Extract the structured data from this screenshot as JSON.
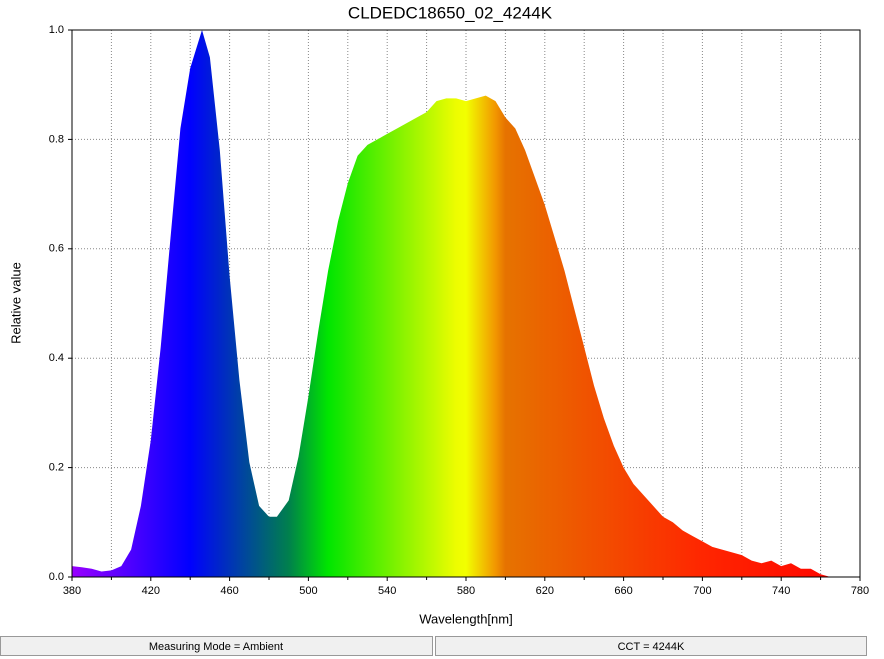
{
  "chart_data": {
    "type": "area",
    "title": "CLDEDC18650_02_4244K",
    "xlabel": "Wavelength[nm]",
    "ylabel": "Relative value",
    "x": [
      380,
      385,
      390,
      395,
      400,
      405,
      410,
      415,
      420,
      425,
      430,
      435,
      440,
      446,
      450,
      455,
      460,
      465,
      470,
      475,
      480,
      484,
      490,
      495,
      500,
      505,
      510,
      515,
      520,
      525,
      530,
      535,
      540,
      545,
      550,
      555,
      560,
      565,
      570,
      575,
      580,
      585,
      590,
      595,
      600,
      605,
      610,
      615,
      620,
      625,
      630,
      635,
      640,
      645,
      650,
      655,
      660,
      665,
      670,
      675,
      680,
      685,
      690,
      695,
      700,
      705,
      710,
      715,
      720,
      725,
      730,
      735,
      740,
      745,
      750,
      755,
      760,
      765,
      770,
      775,
      780
    ],
    "values": [
      0.02,
      0.018,
      0.015,
      0.01,
      0.012,
      0.02,
      0.05,
      0.13,
      0.25,
      0.42,
      0.62,
      0.82,
      0.93,
      1.0,
      0.95,
      0.78,
      0.55,
      0.36,
      0.21,
      0.13,
      0.11,
      0.11,
      0.14,
      0.22,
      0.33,
      0.45,
      0.56,
      0.65,
      0.72,
      0.77,
      0.79,
      0.8,
      0.81,
      0.82,
      0.83,
      0.84,
      0.85,
      0.87,
      0.875,
      0.875,
      0.87,
      0.875,
      0.88,
      0.87,
      0.84,
      0.82,
      0.78,
      0.73,
      0.68,
      0.62,
      0.56,
      0.49,
      0.42,
      0.35,
      0.29,
      0.24,
      0.2,
      0.17,
      0.15,
      0.13,
      0.11,
      0.1,
      0.085,
      0.075,
      0.065,
      0.055,
      0.05,
      0.045,
      0.04,
      0.03,
      0.025,
      0.03,
      0.02,
      0.025,
      0.015,
      0.015,
      0.005,
      0,
      0,
      0,
      0
    ],
    "xlim": [
      380,
      780
    ],
    "ylim": [
      0,
      1
    ],
    "xticks": [
      380,
      420,
      460,
      500,
      540,
      580,
      620,
      660,
      700,
      740,
      780
    ],
    "xminorticks": [
      400,
      440,
      480,
      520,
      560,
      600,
      640,
      680,
      720,
      760
    ],
    "yticks": [
      {
        "value": 0,
        "label": "0.0"
      },
      0.2,
      0.4,
      0.6,
      0.8,
      {
        "value": 1,
        "label": "1.0"
      }
    ],
    "grid": true
  },
  "status_bar": [
    "Measuring Mode = Ambient",
    "CCT = 4244K"
  ]
}
